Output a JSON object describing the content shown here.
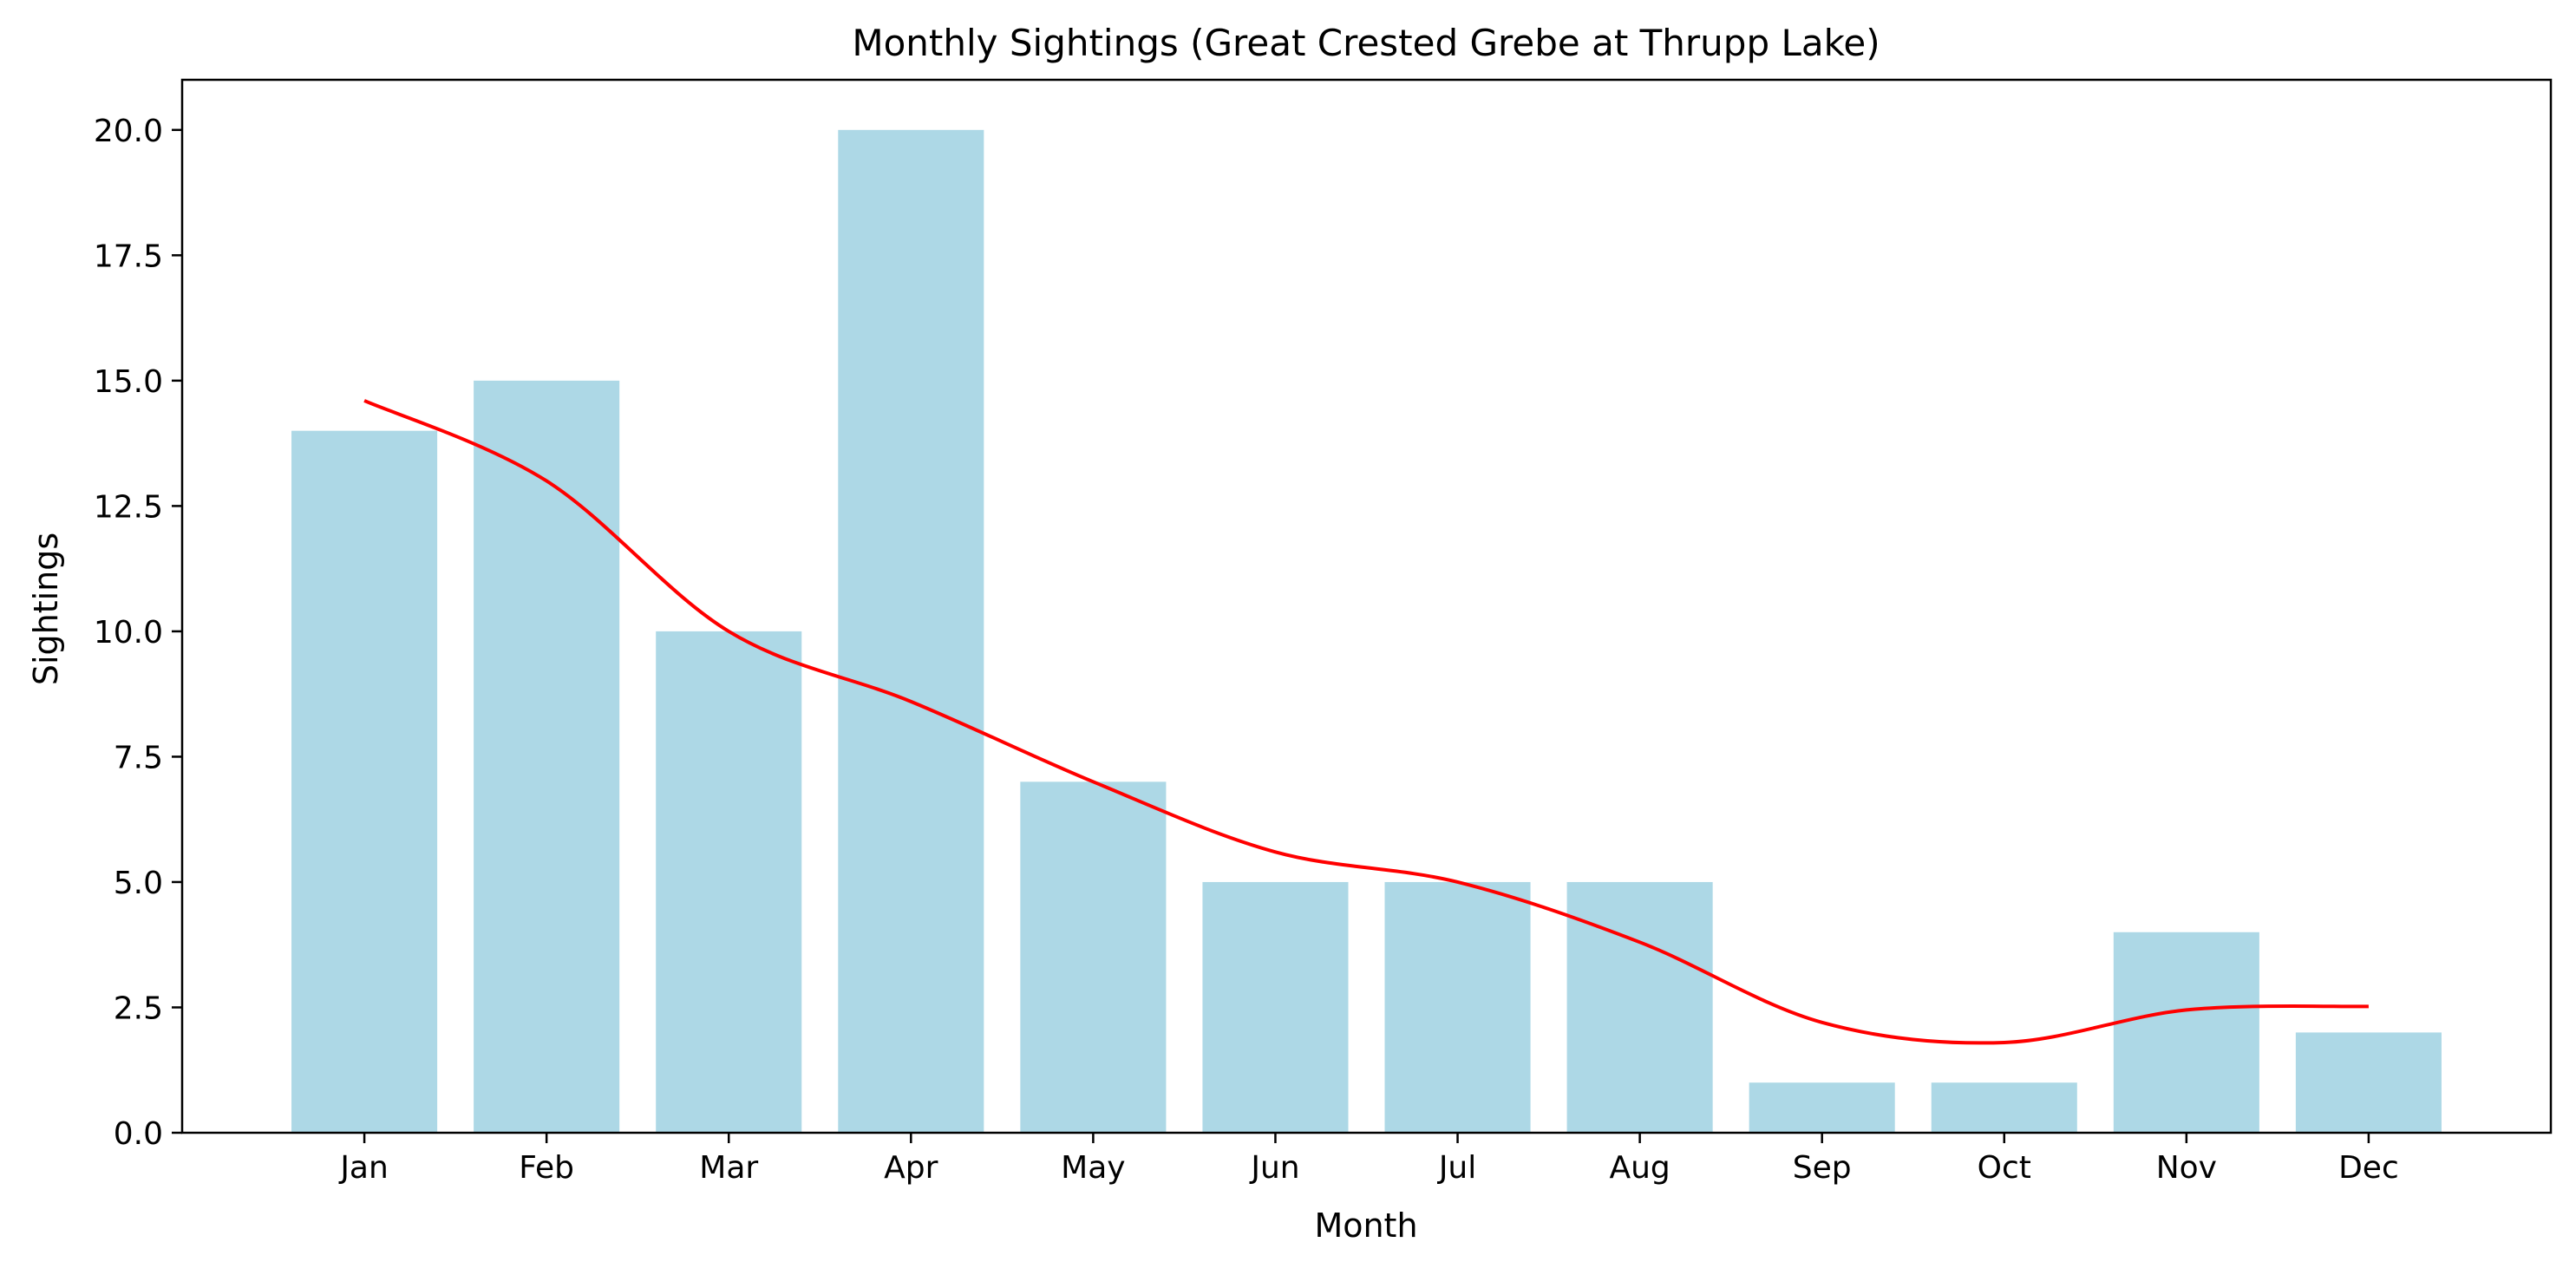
{
  "chart_data": {
    "type": "bar",
    "title": "Monthly Sightings (Great Crested Grebe at Thrupp Lake)",
    "xlabel": "Month",
    "ylabel": "Sightings",
    "categories": [
      "Jan",
      "Feb",
      "Mar",
      "Apr",
      "May",
      "Jun",
      "Jul",
      "Aug",
      "Sep",
      "Oct",
      "Nov",
      "Dec"
    ],
    "values": [
      14,
      15,
      10,
      20,
      7,
      5,
      5,
      5,
      1,
      1,
      4,
      2
    ],
    "trend_line": [
      14.6,
      13.0,
      10.0,
      8.6,
      7.0,
      5.6,
      5.0,
      3.8,
      2.2,
      1.8,
      2.45,
      2.52
    ],
    "ylim": [
      0,
      21
    ],
    "yticks": [
      "0.0",
      "2.5",
      "5.0",
      "7.5",
      "10.0",
      "12.5",
      "15.0",
      "17.5",
      "20.0"
    ],
    "grid": false,
    "colors": {
      "bar": "#add8e6",
      "trend_line": "#ff0000",
      "axis": "#000000"
    }
  }
}
